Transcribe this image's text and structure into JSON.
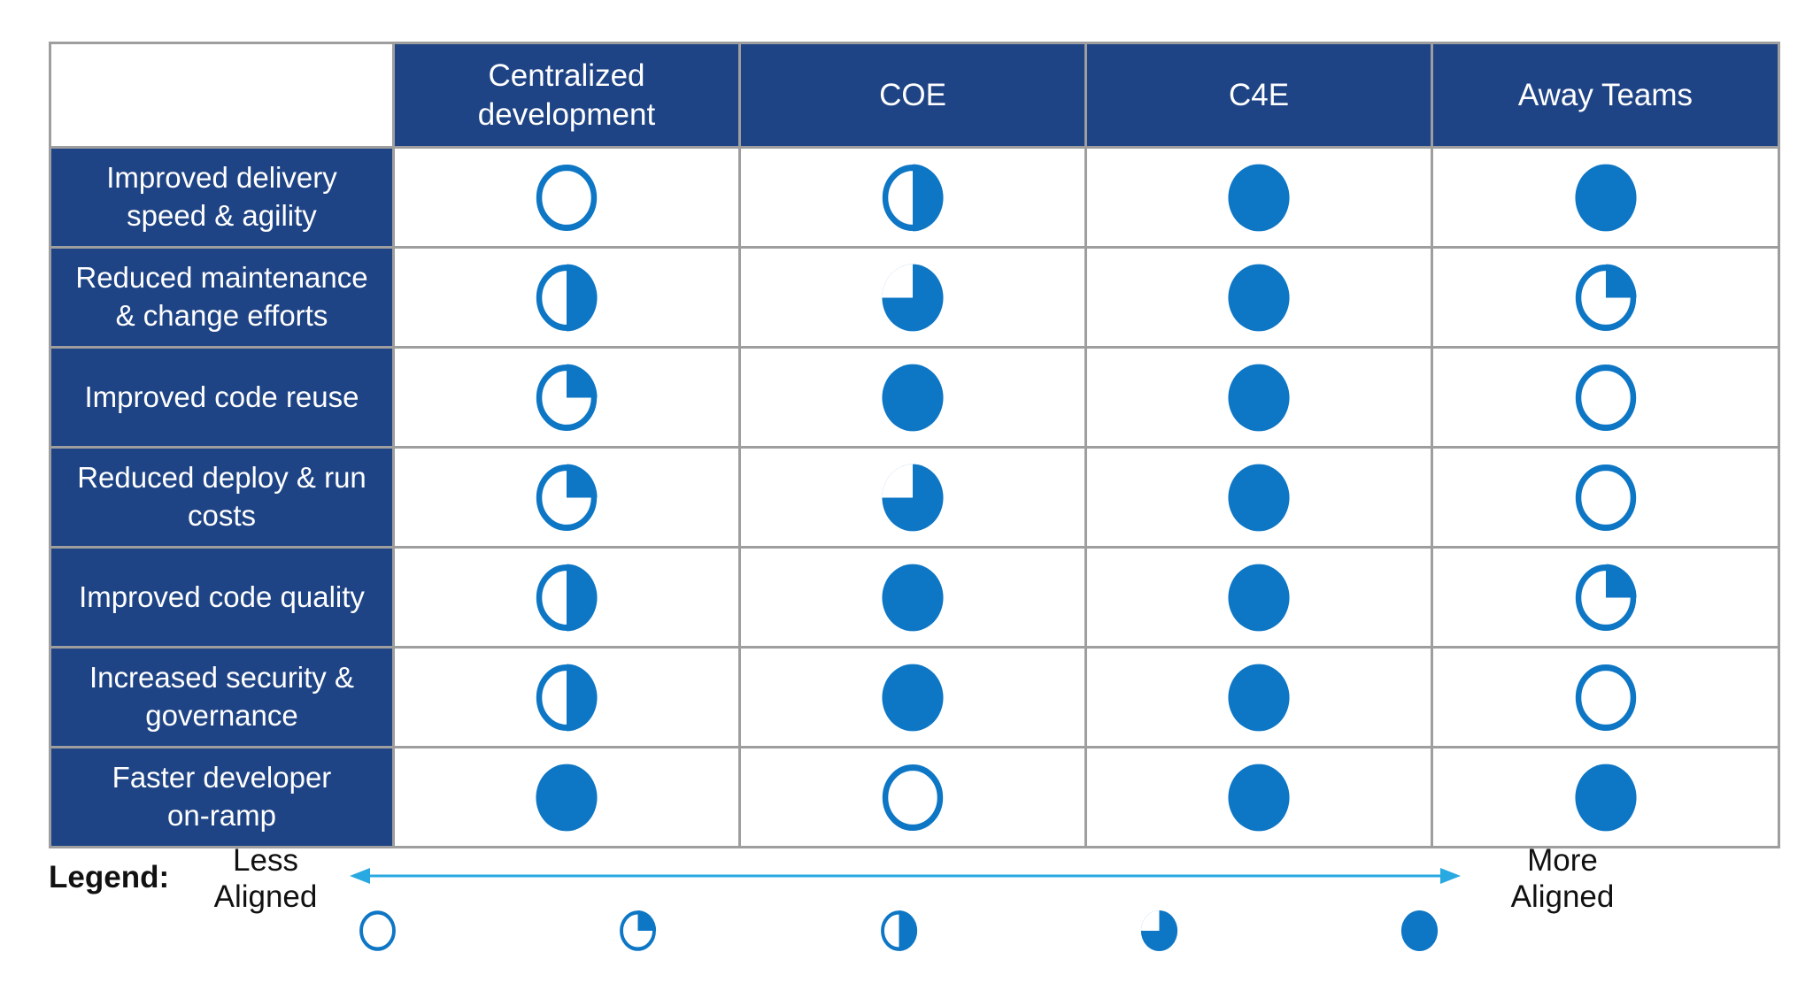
{
  "colors": {
    "navy": "#1F4485",
    "ball_blue": "#0D76C5",
    "arrow_blue": "#29A9E1",
    "grid_gray": "#9E9E9E",
    "text_black": "#111111"
  },
  "table": {
    "columns": [
      "Centralized\ndevelopment",
      "COE",
      "C4E",
      "Away Teams"
    ],
    "rows": [
      {
        "label": "Improved delivery\nspeed & agility",
        "values": [
          0,
          2,
          4,
          4
        ]
      },
      {
        "label": "Reduced maintenance\n& change efforts",
        "values": [
          2,
          3,
          4,
          1
        ]
      },
      {
        "label": "Improved code reuse",
        "values": [
          1,
          4,
          4,
          0
        ]
      },
      {
        "label": "Reduced deploy & run\ncosts",
        "values": [
          1,
          3,
          4,
          0
        ]
      },
      {
        "label": "Improved code quality",
        "values": [
          2,
          4,
          4,
          1
        ]
      },
      {
        "label": "Increased security &\ngovernance",
        "values": [
          2,
          4,
          4,
          0
        ]
      },
      {
        "label": "Faster developer\non-ramp",
        "values": [
          4,
          0,
          4,
          4
        ]
      }
    ]
  },
  "legend": {
    "title": "Legend:",
    "less_label": "Less\nAligned",
    "more_label": "More\nAligned",
    "scale": [
      0,
      1,
      2,
      3,
      4
    ],
    "scale_names": [
      "empty",
      "quarter",
      "half",
      "three-quarter",
      "full"
    ]
  },
  "chart_data": {
    "type": "table",
    "title": "Alignment of development models to benefits (Harvey ball matrix)",
    "columns": [
      "Centralized development",
      "COE",
      "C4E",
      "Away Teams"
    ],
    "rows": [
      "Improved delivery speed & agility",
      "Reduced maintenance & change efforts",
      "Improved code reuse",
      "Reduced deploy & run costs",
      "Improved code quality",
      "Increased security & governance",
      "Faster developer on-ramp"
    ],
    "values": [
      [
        0,
        2,
        4,
        4
      ],
      [
        2,
        3,
        4,
        1
      ],
      [
        1,
        4,
        4,
        0
      ],
      [
        1,
        3,
        4,
        0
      ],
      [
        2,
        4,
        4,
        1
      ],
      [
        2,
        4,
        4,
        0
      ],
      [
        4,
        0,
        4,
        4
      ]
    ],
    "value_scale": "0=empty (Less Aligned) to 4=full (More Aligned), in quarter steps",
    "legend": {
      "left_end": "Less Aligned",
      "right_end": "More Aligned"
    }
  }
}
